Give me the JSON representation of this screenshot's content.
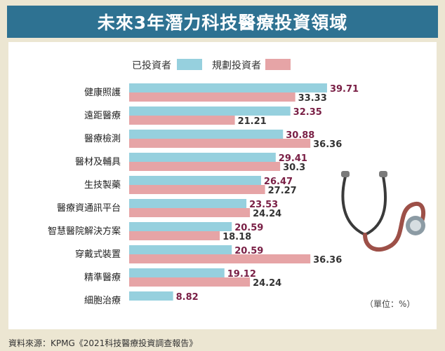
{
  "title": "未來3年潛力科技醫療投資領域",
  "unit_note": "（單位：%）",
  "source_note": "資料來源：KPMG《2021科技醫療投資調查報告》",
  "colors": {
    "title_bg": "#2e7292",
    "invested": "#96d0de",
    "planned": "#e6a4a6",
    "invested_label": "#7a2046",
    "planned_label": "#333333"
  },
  "chart_data": {
    "type": "bar",
    "orientation": "horizontal",
    "title": "未來3年潛力科技醫療投資領域",
    "legend_position": "top",
    "categories": [
      "健康照護",
      "遠距醫療",
      "醫療檢測",
      "醫材及輔具",
      "生技製藥",
      "醫療資通訊平台",
      "智慧醫院解決方案",
      "穿戴式裝置",
      "精準醫療",
      "細胞治療"
    ],
    "series": [
      {
        "name": "已投資者",
        "values": [
          "39.71",
          "32.35",
          "30.88",
          "29.41",
          "26.47",
          "23.53",
          "20.59",
          "20.59",
          "19.12",
          "8.82"
        ]
      },
      {
        "name": "規劃投資者",
        "values": [
          "33.33",
          "21.21",
          "36.36",
          "30.3",
          "27.27",
          "24.24",
          "18.18",
          "36.36",
          "24.24",
          null
        ]
      }
    ],
    "xlim": [
      0,
      40
    ],
    "grid": false
  }
}
